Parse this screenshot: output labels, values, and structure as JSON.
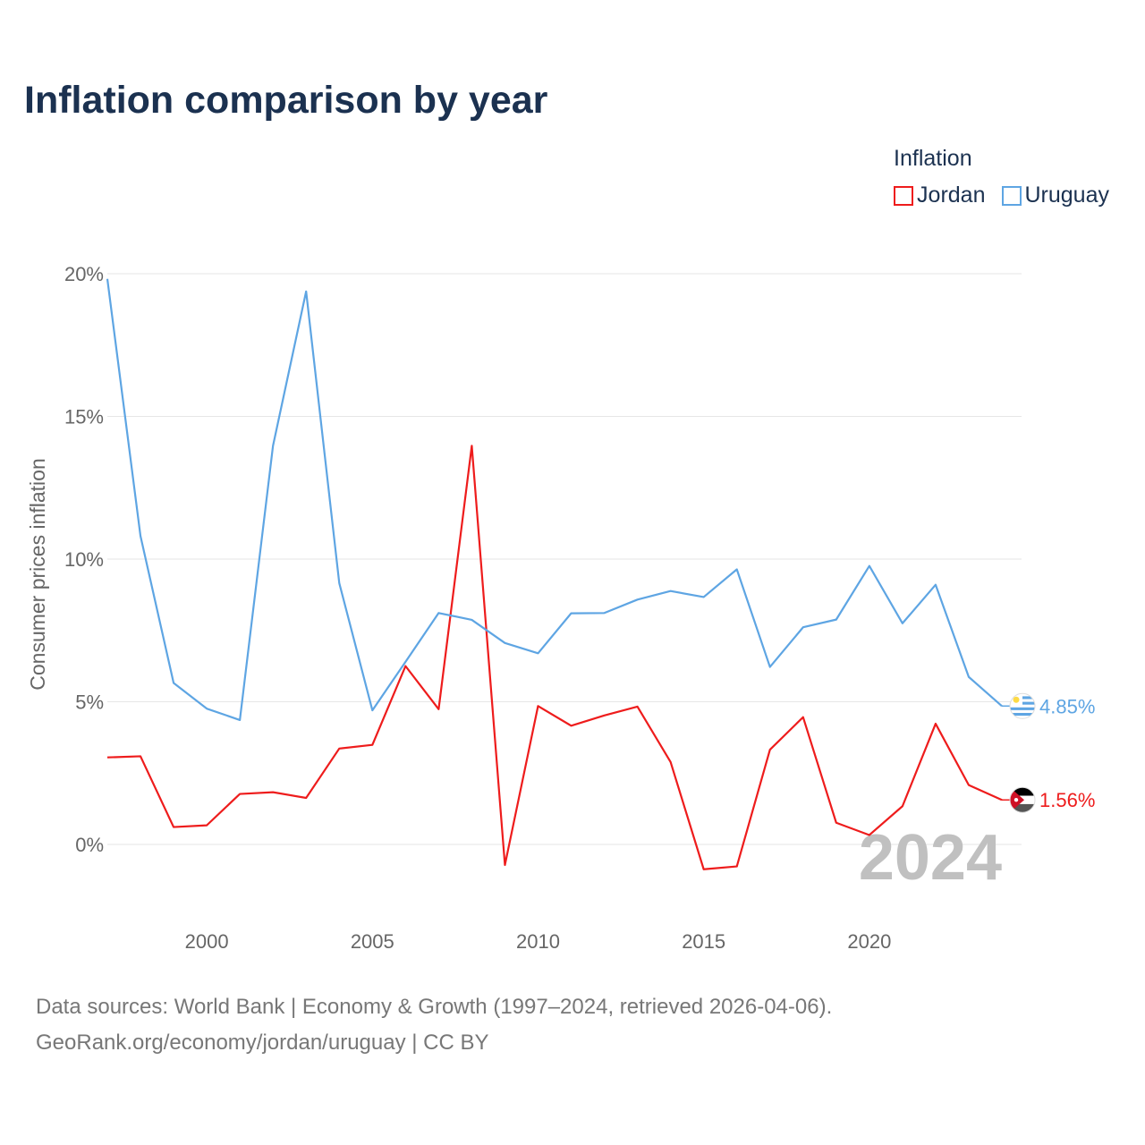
{
  "title": "Inflation comparison by year",
  "legend": {
    "title": "Inflation",
    "items": [
      {
        "label": "Jordan",
        "color": "#ee1c1c"
      },
      {
        "label": "Uruguay",
        "color": "#5ea5e3"
      }
    ]
  },
  "chart_data": {
    "type": "line",
    "ylabel": "Consumer prices inflation",
    "ylim": [
      -2,
      20
    ],
    "xlim": [
      1997,
      2024
    ],
    "yticks": [
      0,
      5,
      10,
      15,
      20
    ],
    "ytick_labels": [
      "0%",
      "5%",
      "10%",
      "15%",
      "20%"
    ],
    "xticks": [
      2000,
      2005,
      2010,
      2015,
      2020
    ],
    "xtick_labels": [
      "2000",
      "2005",
      "2010",
      "2015",
      "2020"
    ],
    "x": [
      1997,
      1998,
      1999,
      2000,
      2001,
      2002,
      2003,
      2004,
      2005,
      2006,
      2007,
      2008,
      2009,
      2010,
      2011,
      2012,
      2013,
      2014,
      2015,
      2016,
      2017,
      2018,
      2019,
      2020,
      2021,
      2022,
      2023,
      2024
    ],
    "series": [
      {
        "name": "Jordan",
        "color": "#ee1c1c",
        "end_label": "1.56%",
        "values": [
          3.05,
          3.09,
          0.61,
          0.67,
          1.77,
          1.83,
          1.63,
          3.36,
          3.49,
          6.25,
          4.74,
          13.97,
          -0.72,
          4.85,
          4.16,
          4.52,
          4.83,
          2.89,
          -0.87,
          -0.77,
          3.32,
          4.46,
          0.76,
          0.33,
          1.34,
          4.23,
          2.08,
          1.56
        ]
      },
      {
        "name": "Uruguay",
        "color": "#5ea5e3",
        "end_label": "4.85%",
        "values": [
          19.82,
          10.81,
          5.66,
          4.76,
          4.36,
          13.97,
          19.38,
          9.16,
          4.7,
          6.4,
          8.11,
          7.87,
          7.06,
          6.7,
          8.1,
          8.11,
          8.58,
          8.88,
          8.67,
          9.64,
          6.22,
          7.61,
          7.88,
          9.76,
          7.75,
          9.1,
          5.87,
          4.85
        ]
      }
    ],
    "watermark_year": "2024"
  },
  "sources": {
    "line1": "Data sources: World Bank | Economy & Growth (1997–2024, retrieved 2026-04-06).",
    "line2": "GeoRank.org/economy/jordan/uruguay | CC BY"
  }
}
